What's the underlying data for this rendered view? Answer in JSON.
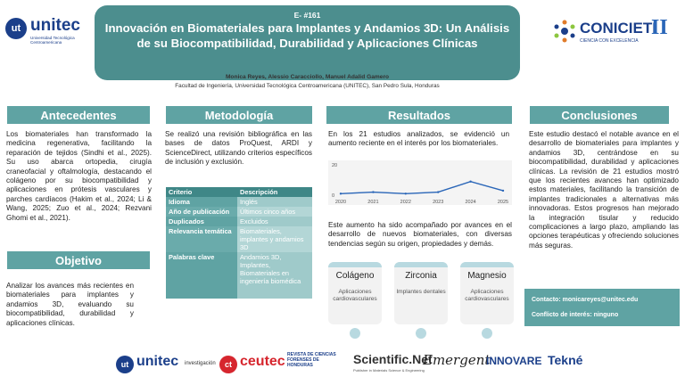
{
  "header": {
    "event_id": "E- #161",
    "title": "Innovación en Biomateriales para Implantes y Andamios 3D: Un Análisis de su Biocompatibilidad, Durabilidad y Aplicaciones Clínicas",
    "authors": "Monica Reyes, Alessio Caracciollo, Manuel Adalid Gamero",
    "affiliation": "Facultad de Ingeniería, Universidad Tecnológica Centroamericana (UNITEC), San Pedro Sula, Honduras"
  },
  "logo_left": {
    "name": "unitec",
    "subtitle": "Universidad Tecnológica Centroamericana"
  },
  "logo_right": {
    "name": "CONICIETI",
    "numeral": "II",
    "tagline": "CIENCIA CON EXCELENCIA"
  },
  "antecedentes": {
    "heading": "Antecedentes",
    "body": "Los biomateriales han transformado la medicina regenerativa, facilitando la reparación de tejidos (Sindhi et al., 2025). Su uso abarca ortopedia, cirugía craneofacial y oftalmología, destacando el colágeno por su biocompatibilidad y aplicaciones en prótesis vasculares y parches cardíacos (Hakim et al., 2024; Li & Wang, 2025; Zuo et al., 2024; Rezvani Ghomi et al., 2021)."
  },
  "objetivo": {
    "heading": "Objetivo",
    "body": "Analizar los avances más recientes en biomateriales para implantes y andamios 3D, evaluando su biocompatibilidad, durabilidad y aplicaciones clínicas."
  },
  "metodologia": {
    "heading": "Metodología",
    "body": "Se realizó una revisión bibliográfica en las bases de datos ProQuest, ARDI y ScienceDirect, utilizando criterios específicos de inclusión y exclusión.",
    "table": {
      "headers": [
        "Criterio",
        "Descripción"
      ],
      "rows": [
        [
          "Idioma",
          "Inglés"
        ],
        [
          "Año de publicación",
          "Últimos cinco años"
        ],
        [
          "Duplicados",
          "Excluidos"
        ],
        [
          "Relevancia temática",
          "Biomateriales, implantes y andamios 3D"
        ],
        [
          "Palabras clave",
          "Andamios 3D, Implantes, Biomateriales en ingeniería biomédica"
        ]
      ]
    }
  },
  "resultados": {
    "heading": "Resultados",
    "body1": "En los 21 estudios analizados, se evidenció un aumento reciente en el interés por los biomateriales.",
    "body2": "Este aumento ha sido acompañado por avances en el desarrollo de nuevos biomateriales, con diversas tendencias según su origen, propiedades y demás.",
    "cards": [
      {
        "title": "Colágeno",
        "subtitle": "Aplicaciones cardiovasculares"
      },
      {
        "title": "Zirconia",
        "subtitle": "Implantes dentales"
      },
      {
        "title": "Magnesio",
        "subtitle": "Aplicaciones cardiovasculares"
      }
    ]
  },
  "chart_data": {
    "type": "line",
    "x": [
      2020,
      2021,
      2022,
      2023,
      2024,
      2025
    ],
    "series": [
      {
        "values": [
          1,
          2,
          1,
          2,
          9,
          3
        ]
      }
    ],
    "ylim": [
      0,
      20
    ],
    "yticks": [
      "0",
      "20"
    ],
    "xticks": [
      "2020",
      "2021",
      "2022",
      "2023",
      "2024",
      "2025"
    ],
    "line_color": "#2a66b8"
  },
  "conclusiones": {
    "heading": "Conclusiones",
    "body": "Este estudio destacó el notable avance en el desarrollo de biomateriales para implantes y andamios 3D, centrándose en su biocompatibilidad, durabilidad y aplicaciones clínicas. La revisión de 21 estudios mostró que los recientes avances han optimizado estos materiales, facilitando la transición de implantes tradicionales a alternativas más innovadoras. Estos progresos han mejorado la integración tisular y reducido complicaciones a largo plazo, ampliando las opciones terapéuticas y ofreciendo soluciones más seguras."
  },
  "contacto": {
    "contact": "Contacto: monicareyes@unitec.edu",
    "conflict": "Conflicto de interés: ninguno"
  },
  "footer": {
    "unitec": "unitec",
    "investigacion": "investigación",
    "ceutec": "ceutec",
    "revista": "REVISTA DE CIENCIAS FORENSES DE HONDURAS",
    "scientific": "Scientific.Net",
    "scientific_sub": "Publisher in Materials Science & Engineering",
    "emergent": "Emergent",
    "innovare": "INNOVARE",
    "tekne": "Tekné"
  },
  "colors": {
    "primary": "#4c8e8e",
    "section": "#5fa3a3",
    "table_header": "#3f8787"
  }
}
